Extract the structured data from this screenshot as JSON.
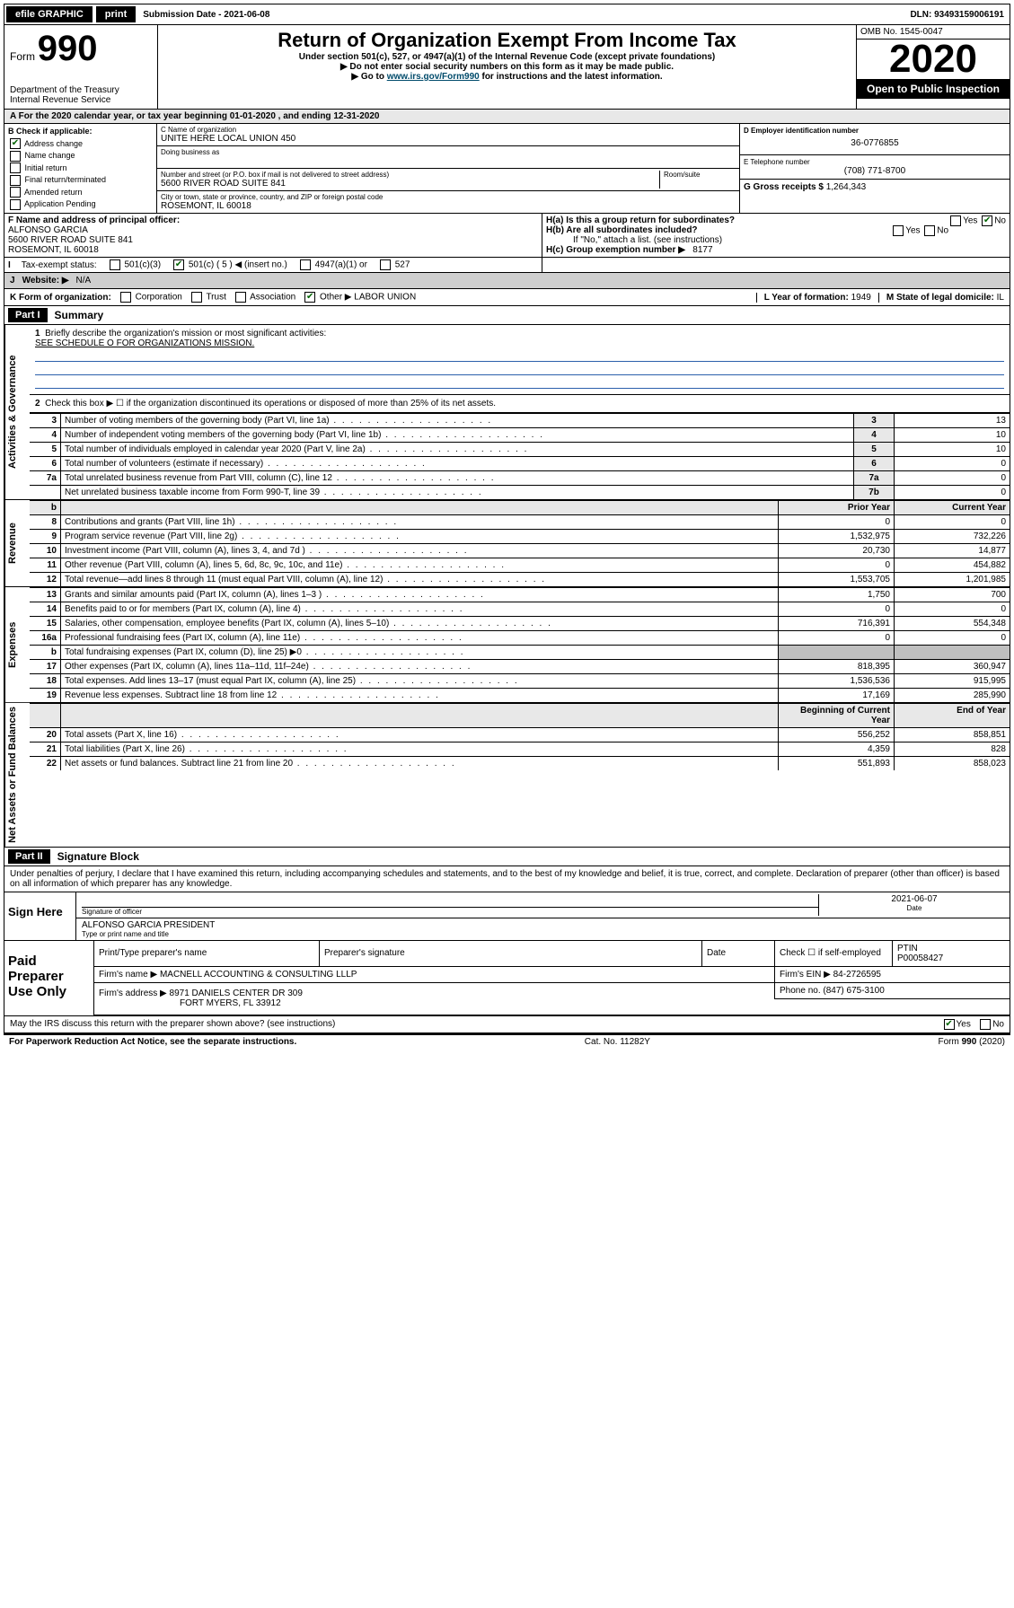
{
  "topbar": {
    "efile": "efile GRAPHIC",
    "print": "print",
    "sub_label": "Submission Date - ",
    "sub_date": "2021-06-08",
    "dln_label": "DLN: ",
    "dln": "93493159006191"
  },
  "header": {
    "form_prefix": "Form",
    "form_number": "990",
    "dept1": "Department of the Treasury",
    "dept2": "Internal Revenue Service",
    "main_title": "Return of Organization Exempt From Income Tax",
    "subtitle1": "Under section 501(c), 527, or 4947(a)(1) of the Internal Revenue Code (except private foundations)",
    "subtitle2": "▶ Do not enter social security numbers on this form as it may be made public.",
    "subtitle3_pre": "▶ Go to ",
    "subtitle3_link": "www.irs.gov/Form990",
    "subtitle3_post": " for instructions and the latest information.",
    "omb": "OMB No. 1545-0047",
    "year": "2020",
    "open_public": "Open to Public Inspection"
  },
  "period_line": "A For the 2020 calendar year, or tax year beginning 01-01-2020   , and ending 12-31-2020",
  "sectionB": {
    "label": "B Check if applicable:",
    "addr_change": "Address change",
    "name_change": "Name change",
    "initial": "Initial return",
    "final": "Final return/terminated",
    "amended": "Amended return",
    "app_pending": "Application Pending"
  },
  "sectionC": {
    "name_lbl": "C Name of organization",
    "name": "UNITE HERE LOCAL UNION 450",
    "dba_lbl": "Doing business as",
    "street_lbl": "Number and street (or P.O. box if mail is not delivered to street address)",
    "room_lbl": "Room/suite",
    "street": "5600 RIVER ROAD SUITE 841",
    "city_lbl": "City or town, state or province, country, and ZIP or foreign postal code",
    "city": "ROSEMONT, IL  60018"
  },
  "sectionD": {
    "label": "D Employer identification number",
    "value": "36-0776855"
  },
  "sectionE": {
    "label": "E Telephone number",
    "value": "(708) 771-8700"
  },
  "sectionG": {
    "label": "G Gross receipts $ ",
    "value": "1,264,343"
  },
  "sectionF": {
    "label": "F Name and address of principal officer:",
    "name": "ALFONSO GARCIA",
    "addr1": "5600 RIVER ROAD SUITE 841",
    "addr2": "ROSEMONT, IL  60018"
  },
  "sectionH": {
    "a": "H(a)  Is this a group return for subordinates?",
    "b": "H(b)  Are all subordinates included?",
    "b_note": "If \"No,\" attach a list. (see instructions)",
    "c_lbl": "H(c)  Group exemption number ▶",
    "c_val": "8177",
    "yes": "Yes",
    "no": "No"
  },
  "sectionI": {
    "label": "Tax-exempt status:",
    "s501c3": "501(c)(3)",
    "s501c": "501(c) ( 5 ) ◀ (insert no.)",
    "s4947": "4947(a)(1) or",
    "s527": "527"
  },
  "sectionJ": {
    "label": "Website: ▶",
    "value": "N/A"
  },
  "sectionK": {
    "label": "K Form of organization:",
    "corp": "Corporation",
    "trust": "Trust",
    "assoc": "Association",
    "other": "Other ▶",
    "other_val": "LABOR UNION"
  },
  "sectionL": {
    "label": "L Year of formation:",
    "value": "1949"
  },
  "sectionM": {
    "label": "M State of legal domicile:",
    "value": "IL"
  },
  "partI": {
    "header": "Part I",
    "title": "Summary",
    "tabs": {
      "gov": "Activities & Governance",
      "rev": "Revenue",
      "exp": "Expenses",
      "net": "Net Assets or Fund Balances"
    },
    "line1": "Briefly describe the organization's mission or most significant activities:",
    "line1_val": "SEE SCHEDULE O FOR ORGANIZATIONS MISSION.",
    "line2": "Check this box ▶ ☐  if the organization discontinued its operations or disposed of more than 25% of its net assets.",
    "rows_gov": [
      {
        "n": "3",
        "text": "Number of voting members of the governing body (Part VI, line 1a)",
        "box": "3",
        "v": "13"
      },
      {
        "n": "4",
        "text": "Number of independent voting members of the governing body (Part VI, line 1b)",
        "box": "4",
        "v": "10"
      },
      {
        "n": "5",
        "text": "Total number of individuals employed in calendar year 2020 (Part V, line 2a)",
        "box": "5",
        "v": "10"
      },
      {
        "n": "6",
        "text": "Total number of volunteers (estimate if necessary)",
        "box": "6",
        "v": "0"
      },
      {
        "n": "7a",
        "text": "Total unrelated business revenue from Part VIII, column (C), line 12",
        "box": "7a",
        "v": "0"
      },
      {
        "n": "",
        "text": "Net unrelated business taxable income from Form 990-T, line 39",
        "box": "7b",
        "v": "0"
      }
    ],
    "col_prior": "Prior Year",
    "col_current": "Current Year",
    "rows_rev": [
      {
        "n": "8",
        "text": "Contributions and grants (Part VIII, line 1h)",
        "p": "0",
        "c": "0"
      },
      {
        "n": "9",
        "text": "Program service revenue (Part VIII, line 2g)",
        "p": "1,532,975",
        "c": "732,226"
      },
      {
        "n": "10",
        "text": "Investment income (Part VIII, column (A), lines 3, 4, and 7d )",
        "p": "20,730",
        "c": "14,877"
      },
      {
        "n": "11",
        "text": "Other revenue (Part VIII, column (A), lines 5, 6d, 8c, 9c, 10c, and 11e)",
        "p": "0",
        "c": "454,882"
      },
      {
        "n": "12",
        "text": "Total revenue—add lines 8 through 11 (must equal Part VIII, column (A), line 12)",
        "p": "1,553,705",
        "c": "1,201,985"
      }
    ],
    "rows_exp": [
      {
        "n": "13",
        "text": "Grants and similar amounts paid (Part IX, column (A), lines 1–3 )",
        "p": "1,750",
        "c": "700"
      },
      {
        "n": "14",
        "text": "Benefits paid to or for members (Part IX, column (A), line 4)",
        "p": "0",
        "c": "0"
      },
      {
        "n": "15",
        "text": "Salaries, other compensation, employee benefits (Part IX, column (A), lines 5–10)",
        "p": "716,391",
        "c": "554,348"
      },
      {
        "n": "16a",
        "text": "Professional fundraising fees (Part IX, column (A), line 11e)",
        "p": "0",
        "c": "0"
      },
      {
        "n": "b",
        "text": "Total fundraising expenses (Part IX, column (D), line 25) ▶0",
        "p": "",
        "c": ""
      },
      {
        "n": "17",
        "text": "Other expenses (Part IX, column (A), lines 11a–11d, 11f–24e)",
        "p": "818,395",
        "c": "360,947"
      },
      {
        "n": "18",
        "text": "Total expenses. Add lines 13–17 (must equal Part IX, column (A), line 25)",
        "p": "1,536,536",
        "c": "915,995"
      },
      {
        "n": "19",
        "text": "Revenue less expenses. Subtract line 18 from line 12",
        "p": "17,169",
        "c": "285,990"
      }
    ],
    "col_begin": "Beginning of Current Year",
    "col_end": "End of Year",
    "rows_net": [
      {
        "n": "20",
        "text": "Total assets (Part X, line 16)",
        "p": "556,252",
        "c": "858,851"
      },
      {
        "n": "21",
        "text": "Total liabilities (Part X, line 26)",
        "p": "4,359",
        "c": "828"
      },
      {
        "n": "22",
        "text": "Net assets or fund balances. Subtract line 21 from line 20",
        "p": "551,893",
        "c": "858,023"
      }
    ]
  },
  "partII": {
    "header": "Part II",
    "title": "Signature Block",
    "perjury": "Under penalties of perjury, I declare that I have examined this return, including accompanying schedules and statements, and to the best of my knowledge and belief, it is true, correct, and complete. Declaration of preparer (other than officer) is based on all information of which preparer has any knowledge."
  },
  "sign": {
    "label": "Sign Here",
    "sig_lbl": "Signature of officer",
    "date_lbl": "Date",
    "date": "2021-06-07",
    "name": "ALFONSO GARCIA  PRESIDENT",
    "name_lbl": "Type or print name and title"
  },
  "prep": {
    "label": "Paid Preparer Use Only",
    "pt_name_lbl": "Print/Type preparer's name",
    "pt_sig_lbl": "Preparer's signature",
    "date_lbl": "Date",
    "check_lbl": "Check ☐ if self-employed",
    "ptin_lbl": "PTIN",
    "ptin": "P00058427",
    "firm_name_lbl": "Firm's name   ▶",
    "firm_name": "MACNELL ACCOUNTING & CONSULTING LLLP",
    "firm_ein_lbl": "Firm's EIN ▶",
    "firm_ein": "84-2726595",
    "firm_addr_lbl": "Firm's address ▶",
    "firm_addr1": "8971 DANIELS CENTER DR 309",
    "firm_addr2": "FORT MYERS, FL  33912",
    "phone_lbl": "Phone no.",
    "phone": "(847) 675-3100"
  },
  "discuss": {
    "text": "May the IRS discuss this return with the preparer shown above? (see instructions)",
    "yes": "Yes",
    "no": "No"
  },
  "footer": {
    "pra": "For Paperwork Reduction Act Notice, see the separate instructions.",
    "cat": "Cat. No. 11282Y",
    "form": "Form 990 (2020)"
  }
}
